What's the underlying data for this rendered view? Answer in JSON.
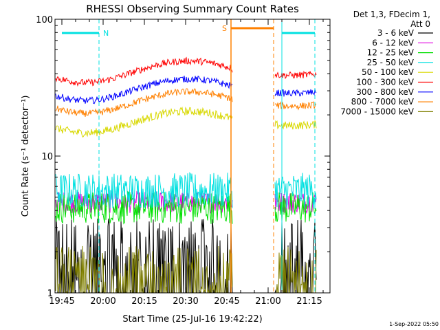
{
  "title": "RHESSI Observing Summary Count Rates",
  "header": {
    "line1": "Det 1,3, FDecim 1,",
    "line2": "Att 0"
  },
  "footer": {
    "date_stamp": "1-Sep-2022 05:50"
  },
  "markers": {
    "night_label": "N",
    "saa_label": "S"
  },
  "chart_data": {
    "type": "line",
    "title": "RHESSI Observing Summary Count Rates",
    "xlabel": "Start Time (25-Jul-16 19:42:22)",
    "ylabel": "Count Rate (s⁻¹ detector⁻¹)",
    "x_ticks": [
      {
        "label": "19:45",
        "min": 0
      },
      {
        "label": "20:00",
        "min": 15
      },
      {
        "label": "20:15",
        "min": 30
      },
      {
        "label": "20:30",
        "min": 45
      },
      {
        "label": "20:45",
        "min": 60
      },
      {
        "label": "21:00",
        "min": 75
      },
      {
        "label": "21:15",
        "min": 90
      }
    ],
    "y_scale": "log",
    "ylim": [
      1,
      100
    ],
    "y_ticks": [
      {
        "label": "1",
        "value": 1
      },
      {
        "label": "10",
        "value": 10
      },
      {
        "label": "100",
        "value": 100
      }
    ],
    "legend_placement": "right, outside plot",
    "series": [
      {
        "name": "3 - 6 keV",
        "color": "#000000",
        "level": 1.5,
        "noise": 0.32
      },
      {
        "name": "6 - 12 keV",
        "color": "#e000e0",
        "level": 4.6,
        "noise": 0.08
      },
      {
        "name": "12 - 25 keV",
        "color": "#00e000",
        "level": 4.2,
        "noise": 0.12
      },
      {
        "name": "25 - 50 keV",
        "color": "#00e0e0",
        "level": 5.6,
        "noise": 0.13
      },
      {
        "name": "50 - 100 keV",
        "color": "#d8d800",
        "level": 18,
        "noise": 0.03
      },
      {
        "name": "100 - 300 keV",
        "color": "#ff0000",
        "level": 42,
        "noise": 0.025
      },
      {
        "name": "300 - 800 keV",
        "color": "#0000ff",
        "level": 31,
        "noise": 0.025
      },
      {
        "name": "800 - 7000 keV",
        "color": "#ff8000",
        "level": 25,
        "noise": 0.025
      },
      {
        "name": "7000 - 15000 keV",
        "color": "#808000",
        "level": 1.4,
        "noise": 0.3
      }
    ],
    "data_gap_minutes": [
      62,
      77.5
    ],
    "intervals": [
      {
        "label": "N",
        "color": "#00e0e0",
        "start_min": 0,
        "end_min": 13.5,
        "type": "night"
      },
      {
        "label": "N",
        "color": "#00e0e0",
        "start_min": 80,
        "end_min": 92,
        "type": "night"
      },
      {
        "label": "S",
        "color": "#ff8000",
        "start_min": 61.5,
        "end_min": 77,
        "type": "saa"
      }
    ]
  }
}
